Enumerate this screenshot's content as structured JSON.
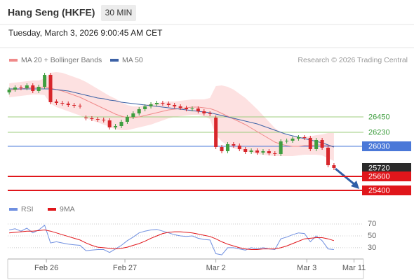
{
  "chart_data": {
    "type": "candlestick",
    "title": "Hang Seng (HKFE)",
    "interval": "30 MIN",
    "subtitle": "Tuesday, March 3, 2026 9:00:45 AM CET",
    "credit": "Research © 2026 Trading Central",
    "up_color": "#3f9e3f",
    "down_color": "#d7262b",
    "open": [
      26800,
      26840,
      26870,
      26860,
      26900,
      26820,
      26880,
      27050,
      26670,
      26650,
      26640,
      26620,
      26610,
      26440,
      26430,
      26420,
      26410,
      26400,
      26300,
      26320,
      26380,
      26450,
      26500,
      26560,
      26600,
      26630,
      26650,
      26640,
      26620,
      26600,
      26580,
      26560,
      26570,
      26530,
      26500,
      26440,
      26020,
      25960,
      26060,
      26040,
      25990,
      25950,
      25970,
      25940,
      25960,
      25930,
      25920,
      26100,
      26110,
      26140,
      26160,
      26150,
      25990,
      26120,
      26010,
      25760
    ],
    "high": [
      26870,
      26900,
      26900,
      26930,
      26930,
      26910,
      27080,
      27080,
      26700,
      26680,
      26670,
      26650,
      26640,
      26470,
      26460,
      26450,
      26440,
      26430,
      26350,
      26410,
      26480,
      26530,
      26590,
      26630,
      26660,
      26680,
      26680,
      26670,
      26650,
      26630,
      26610,
      26600,
      26600,
      26560,
      26530,
      26470,
      26050,
      26090,
      26090,
      26070,
      26020,
      26000,
      26000,
      25990,
      25990,
      25960,
      26130,
      26140,
      26170,
      26190,
      26190,
      26180,
      26150,
      26150,
      26040,
      25790
    ],
    "low": [
      26770,
      26810,
      26830,
      26830,
      26790,
      26790,
      26850,
      26630,
      26620,
      26610,
      26590,
      26580,
      26570,
      26400,
      26390,
      26380,
      26370,
      26270,
      26270,
      26290,
      26350,
      26420,
      26470,
      26530,
      26570,
      26600,
      26610,
      26590,
      26570,
      26550,
      26530,
      26530,
      26500,
      26470,
      26460,
      25990,
      25930,
      25930,
      26010,
      25960,
      25920,
      25920,
      25910,
      25910,
      25900,
      25890,
      25890,
      26070,
      26080,
      26110,
      26120,
      25960,
      25960,
      25980,
      25730,
      25690
    ],
    "close": [
      26840,
      26870,
      26860,
      26900,
      26820,
      26880,
      27050,
      26660,
      26650,
      26640,
      26620,
      26610,
      26600,
      26430,
      26420,
      26410,
      26400,
      26300,
      26320,
      26380,
      26450,
      26500,
      26560,
      26600,
      26630,
      26650,
      26640,
      26620,
      26600,
      26580,
      26560,
      26570,
      26530,
      26500,
      26490,
      26020,
      25960,
      26060,
      26040,
      25990,
      25950,
      25970,
      25940,
      25960,
      25930,
      25920,
      26100,
      26110,
      26140,
      26160,
      26150,
      25990,
      26120,
      26010,
      25760,
      25720
    ],
    "overlays": [
      {
        "name": "MA 20 + Bollinger Bands",
        "color": "#f08a8a",
        "band_color": "#fde1e1",
        "values": [
          26830,
          26840,
          26850,
          26860,
          26870,
          26870,
          26880,
          26860,
          26840,
          26820,
          26790,
          26760,
          26730,
          26690,
          26650,
          26610,
          26570,
          26530,
          26490,
          26460,
          26440,
          26440,
          26450,
          26470,
          26490,
          26510,
          26530,
          26550,
          26560,
          26570,
          26580,
          26590,
          26590,
          26580,
          26570,
          26540,
          26500,
          26460,
          26420,
          26380,
          26340,
          26290,
          26240,
          26190,
          26140,
          26090,
          26060,
          26040,
          26030,
          26030,
          26040,
          26040,
          26050,
          26050,
          26040,
          26020
        ],
        "upper": [
          26930,
          26940,
          26950,
          26960,
          26970,
          26970,
          27000,
          27080,
          27090,
          27080,
          27050,
          27020,
          26990,
          26950,
          26900,
          26850,
          26800,
          26750,
          26710,
          26660,
          26620,
          26600,
          26600,
          26620,
          26640,
          26650,
          26660,
          26670,
          26670,
          26680,
          26690,
          26700,
          26700,
          26700,
          26720,
          26890,
          26900,
          26880,
          26840,
          26780,
          26720,
          26640,
          26560,
          26470,
          26380,
          26290,
          26230,
          26190,
          26170,
          26160,
          26170,
          26170,
          26190,
          26200,
          26220,
          26220
        ],
        "lower": [
          26730,
          26740,
          26750,
          26760,
          26770,
          26770,
          26760,
          26640,
          26590,
          26560,
          26530,
          26500,
          26470,
          26430,
          26400,
          26370,
          26340,
          26310,
          26270,
          26260,
          26260,
          26280,
          26300,
          26320,
          26340,
          26370,
          26400,
          26430,
          26450,
          26460,
          26470,
          26480,
          26480,
          26460,
          26420,
          26190,
          26100,
          26040,
          26000,
          25980,
          25960,
          25940,
          25920,
          25910,
          25900,
          25890,
          25890,
          25890,
          25890,
          25900,
          25910,
          25910,
          25910,
          25900,
          25860,
          25820
        ]
      },
      {
        "name": "MA 50",
        "color": "#3d62a6",
        "values": [
          26850,
          26850,
          26850,
          26850,
          26850,
          26850,
          26850,
          26850,
          26840,
          26830,
          26820,
          26800,
          26780,
          26760,
          26740,
          26720,
          26710,
          26690,
          26680,
          26660,
          26650,
          26640,
          26630,
          26620,
          26610,
          26600,
          26590,
          26580,
          26570,
          26560,
          26550,
          26540,
          26530,
          26520,
          26510,
          26490,
          26470,
          26450,
          26430,
          26410,
          26390,
          26370,
          26350,
          26320,
          26290,
          26260,
          26230,
          26200,
          26180,
          26160,
          26140,
          26120,
          26100,
          26080,
          26050,
          26020
        ]
      }
    ],
    "levels": [
      {
        "value": 26450,
        "color": "#9ccc7c",
        "text_color": "#3f9e3f",
        "line": true,
        "boxed": false
      },
      {
        "value": 26230,
        "color": "#9ccc7c",
        "text_color": "#3f9e3f",
        "line": true,
        "boxed": false
      },
      {
        "value": 26030,
        "color": "#4a78d8",
        "text_color": "#ffffff",
        "line": true,
        "boxed": true
      },
      {
        "value": 25720,
        "color": "#2b2b2b",
        "text_color": "#ffffff",
        "line": false,
        "boxed": true
      },
      {
        "value": 25600,
        "color": "#e0161b",
        "text_color": "#ffffff",
        "line": true,
        "boxed": true
      },
      {
        "value": 25400,
        "color": "#e0161b",
        "text_color": "#ffffff",
        "line": true,
        "boxed": true
      }
    ],
    "xlim": [
      -0.25,
      60
    ],
    "xticks": [
      {
        "value": 6.3,
        "label": "Feb 26"
      },
      {
        "value": 19.6,
        "label": "Feb 27"
      },
      {
        "value": 35,
        "label": "Mar 2"
      },
      {
        "value": 50.4,
        "label": "Mar 3"
      },
      {
        "value": 58.4,
        "label": "Mar 11"
      }
    ],
    "ylim": [
      25270,
      27170
    ],
    "rsi": {
      "ylim": [
        11,
        79.5
      ],
      "yticks": [
        70,
        50,
        30
      ],
      "series": [
        {
          "name": "RSI",
          "color": "#6f8fe0",
          "values": [
            60,
            62,
            58,
            63,
            55,
            60,
            68,
            38,
            40,
            38,
            36,
            35,
            34,
            25,
            26,
            27,
            27,
            22,
            28,
            34,
            42,
            48,
            55,
            58,
            60,
            61,
            58,
            55,
            52,
            50,
            49,
            50,
            46,
            44,
            43,
            20,
            18,
            30,
            30,
            28,
            26,
            30,
            28,
            30,
            28,
            27,
            45,
            48,
            52,
            55,
            54,
            40,
            50,
            42,
            28,
            27
          ]
        },
        {
          "name": "9MA",
          "color": "#e0161b",
          "values": [
            55,
            56,
            57,
            58,
            58,
            59,
            60,
            58,
            55,
            52,
            49,
            46,
            43,
            38,
            34,
            31,
            30,
            29,
            28,
            29,
            31,
            34,
            37,
            41,
            46,
            50,
            54,
            56,
            57,
            57,
            56,
            55,
            53,
            51,
            49,
            45,
            40,
            36,
            33,
            30,
            28,
            27,
            27,
            28,
            28,
            28,
            30,
            33,
            37,
            41,
            45,
            46,
            47,
            47,
            45,
            42
          ]
        }
      ]
    }
  }
}
